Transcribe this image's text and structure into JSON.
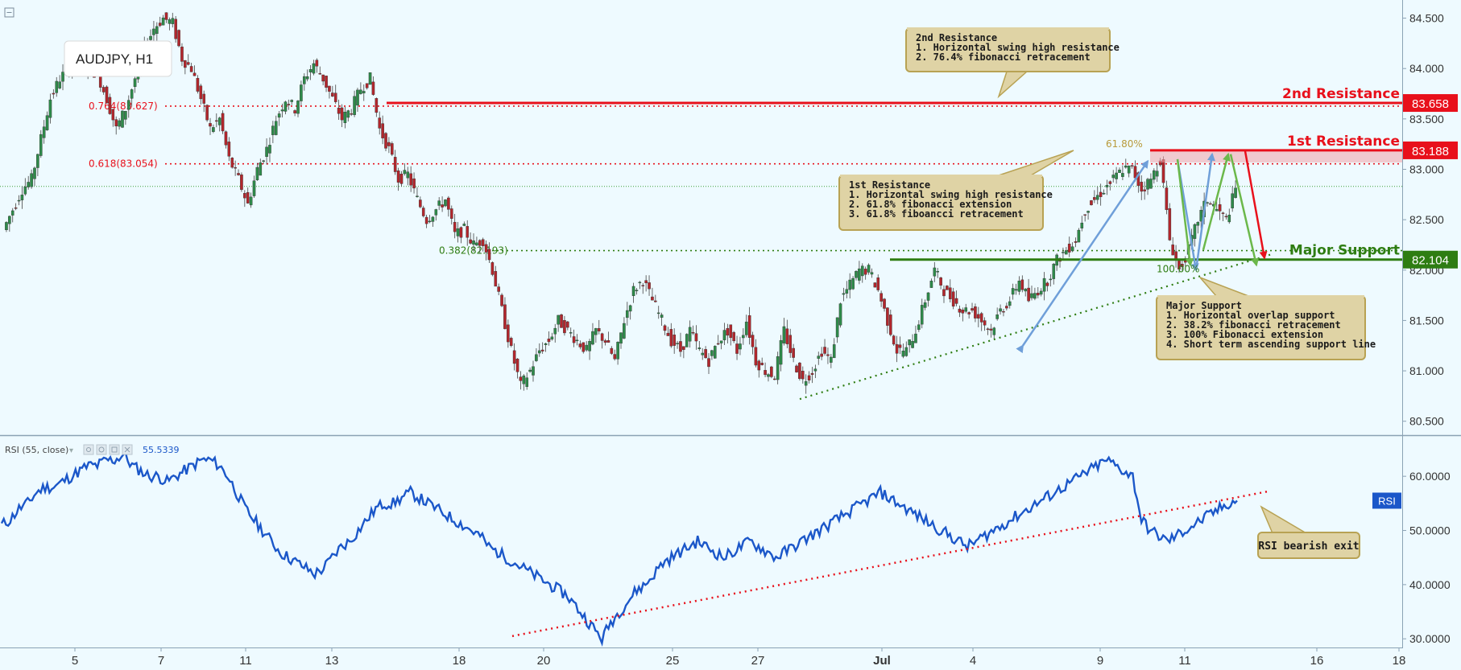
{
  "chart_data": [
    {
      "type": "candlestick",
      "title": "AUDJPY, H1",
      "y_axis": {
        "ticks": [
          "84.500",
          "84.000",
          "83.500",
          "83.000",
          "82.500",
          "82.000",
          "81.500",
          "81.000",
          "80.500"
        ],
        "ylim": [
          80.37,
          84.68
        ]
      },
      "x_axis": {
        "ticks": [
          "5",
          "7",
          "11",
          "13",
          "18",
          "20",
          "25",
          "27",
          "Jul",
          "4",
          "9",
          "11",
          "16",
          "18"
        ]
      },
      "price_levels": [
        {
          "name": "2nd Resistance",
          "value": 83.658,
          "value_label": "83.658",
          "color": "#e8101b"
        },
        {
          "name": "1st Resistance",
          "value": 83.188,
          "value_label": "83.188",
          "color": "#e8101b"
        },
        {
          "name": "Major Support",
          "value": 82.104,
          "value_label": "82.104",
          "color": "#2e7d12"
        }
      ],
      "fib_levels": [
        {
          "label": "0.764(83.627)",
          "value": 83.627
        },
        {
          "label": "0.618(83.054)",
          "value": 83.054
        },
        {
          "label": "0.382(82.193)",
          "value": 82.193
        }
      ],
      "fib_extension_labels": {
        "top": "61.80%",
        "bottom": "100.00%"
      },
      "reference_line": 82.83,
      "close_series": [
        82.4,
        82.6,
        82.8,
        82.9,
        83.3,
        83.7,
        83.9,
        84.0,
        84.1,
        84.0,
        83.95,
        83.7,
        83.4,
        83.6,
        83.9,
        84.2,
        84.4,
        84.5,
        84.45,
        84.1,
        84.0,
        83.7,
        83.4,
        83.5,
        83.1,
        82.9,
        82.65,
        83.0,
        83.2,
        83.5,
        83.7,
        83.6,
        83.9,
        84.05,
        83.9,
        83.7,
        83.5,
        83.6,
        83.8,
        83.9,
        83.4,
        83.2,
        82.9,
        82.95,
        82.7,
        82.5,
        82.6,
        82.7,
        82.35,
        82.4,
        82.25,
        82.3,
        82.0,
        81.6,
        81.2,
        80.85,
        81.0,
        81.2,
        81.3,
        81.5,
        81.4,
        81.3,
        81.2,
        81.4,
        81.3,
        81.1,
        81.5,
        81.8,
        81.9,
        81.7,
        81.5,
        81.3,
        81.2,
        81.4,
        81.2,
        81.1,
        81.3,
        81.4,
        81.2,
        81.5,
        81.1,
        81.0,
        80.95,
        81.4,
        81.1,
        80.9,
        81.0,
        81.2,
        81.1,
        81.7,
        81.85,
        82.0,
        82.0,
        81.8,
        81.5,
        81.2,
        81.2,
        81.4,
        81.7,
        82.0,
        81.8,
        81.7,
        81.6,
        81.6,
        81.5,
        81.4,
        81.6,
        81.7,
        81.9,
        81.7,
        81.8,
        81.9,
        82.1,
        82.2,
        82.3,
        82.6,
        82.7,
        82.8,
        82.9,
        83.0,
        83.0,
        82.8,
        82.9,
        83.1,
        82.3,
        82.0,
        82.2,
        82.5,
        82.7,
        82.6,
        82.5,
        82.8
      ],
      "annotations": [
        {
          "id": "res2",
          "title": "2nd Resistance",
          "lines": [
            "1. Horizontal swing high resistance",
            "2. 76.4% fibonacci retracement"
          ]
        },
        {
          "id": "res1",
          "title": "1st Resistance",
          "lines": [
            "1. Horizontal swing high resistance",
            "2. 61.8% fibonacci extension",
            "3. 61.8% fiboancci retracement"
          ]
        },
        {
          "id": "sup",
          "title": "Major Support",
          "lines": [
            "1. Horizontal overlap support",
            "2. 38.2% fibonacci retracement",
            "3. 100% Fibonacci extension",
            "4. Short term ascending support line"
          ]
        }
      ]
    },
    {
      "type": "line",
      "title": "RSI (55, close)",
      "current_value": "55.5339",
      "badge": "RSI",
      "y_axis": {
        "ticks": [
          "60.0000",
          "50.0000",
          "40.0000",
          "30.0000"
        ],
        "ylim": [
          28.4,
          67.3
        ]
      },
      "values": [
        51,
        52,
        54,
        55,
        57,
        58,
        58,
        59,
        60,
        61,
        62,
        62,
        63,
        63,
        64,
        62,
        61,
        60,
        60,
        59,
        60,
        61,
        62,
        63,
        63,
        62,
        60,
        57,
        54,
        52,
        50,
        48,
        46,
        45,
        44,
        43,
        42,
        43,
        45,
        47,
        48,
        50,
        52,
        54,
        55,
        55,
        56,
        57,
        56,
        55,
        54,
        53,
        52,
        51,
        50,
        49,
        47,
        46,
        45,
        44,
        43,
        42,
        41,
        40,
        39,
        38,
        36,
        34,
        32,
        30,
        33,
        35,
        37,
        39,
        40,
        42,
        44,
        45,
        46,
        47,
        48,
        47,
        46,
        45,
        46,
        47,
        48,
        47,
        46,
        45,
        46,
        47,
        48,
        49,
        50,
        51,
        52,
        53,
        54,
        55,
        56,
        57,
        56,
        55,
        54,
        53,
        52,
        51,
        50,
        49,
        48,
        47,
        48,
        49,
        50,
        51,
        52,
        53,
        54,
        55,
        56,
        57,
        58,
        59,
        60,
        61,
        62,
        63,
        62,
        61,
        60,
        52,
        50,
        49,
        48,
        49,
        50,
        51,
        52,
        53,
        54,
        55,
        55.5
      ],
      "trendline_label": "RSI bearish exit"
    }
  ]
}
